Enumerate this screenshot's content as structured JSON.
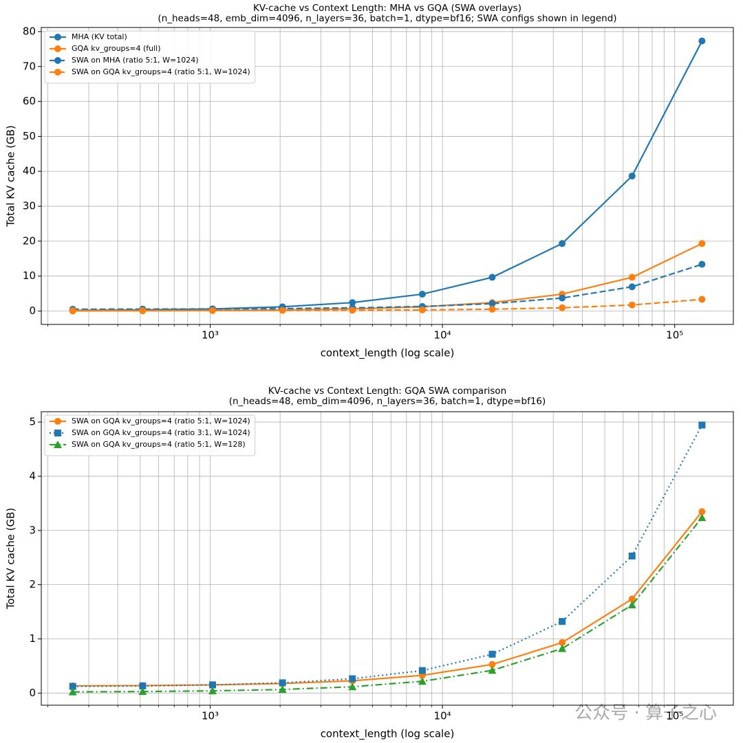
{
  "chart_data": [
    {
      "type": "line",
      "title": "KV-cache vs Context Length: MHA vs GQA (SWA overlays)",
      "subtitle": "(n_heads=48, emb_dim=4096, n_layers=36, batch=1, dtype=bf16; SWA configs shown in legend)",
      "xlabel": "context_length (log scale)",
      "ylabel": "Total KV cache (GB)",
      "xscale": "log",
      "grid": true,
      "legend": "upper left",
      "x": [
        256,
        512,
        1024,
        2048,
        4096,
        8192,
        16384,
        32768,
        65536,
        131072
      ],
      "series": [
        {
          "name": "MHA (KV total)",
          "color": "#1f77b4",
          "linestyle": "solid",
          "marker": "circle",
          "values": [
            0.151,
            0.302,
            0.604,
            1.208,
            2.416,
            4.832,
            9.664,
            19.327,
            38.655,
            77.309
          ]
        },
        {
          "name": "GQA kv_groups=4 (full)",
          "color": "#ff7f0e",
          "linestyle": "solid",
          "marker": "circle",
          "values": [
            0.038,
            0.075,
            0.151,
            0.302,
            0.604,
            1.208,
            2.416,
            4.832,
            9.664,
            19.327
          ]
        },
        {
          "name": "SWA on MHA (ratio 5:1, W=1024)",
          "color": "#1f77b4",
          "linestyle": "dashed",
          "marker": "circle",
          "values": [
            0.528,
            0.554,
            0.604,
            0.705,
            0.906,
            1.308,
            2.114,
            3.724,
            6.945,
            13.388
          ]
        },
        {
          "name": "SWA on GQA kv_groups=4 (ratio 5:1, W=1024)",
          "color": "#ff7f0e",
          "linestyle": "dashed",
          "marker": "circle",
          "values": [
            0.132,
            0.138,
            0.151,
            0.176,
            0.226,
            0.327,
            0.528,
            0.931,
            1.736,
            3.347
          ]
        }
      ],
      "xlim": [
        187.4,
        178900
      ],
      "ylim": [
        -3.83,
        81.17
      ],
      "xticks": [
        {
          "value": 1000,
          "label": "10³"
        },
        {
          "value": 10000,
          "label": "10⁴"
        },
        {
          "value": 100000,
          "label": "10⁵"
        }
      ],
      "xticks_minor": [
        200,
        300,
        400,
        500,
        600,
        700,
        800,
        900,
        2000,
        3000,
        4000,
        5000,
        6000,
        7000,
        8000,
        9000,
        20000,
        30000,
        40000,
        50000,
        60000,
        70000,
        80000,
        90000
      ],
      "yticks": [
        0,
        10,
        20,
        30,
        40,
        50,
        60,
        70,
        80
      ]
    },
    {
      "type": "line",
      "title": "KV-cache vs Context Length: GQA SWA comparison",
      "subtitle": "(n_heads=48, emb_dim=4096, n_layers=36, batch=1, dtype=bf16)",
      "xlabel": "context_length (log scale)",
      "ylabel": "Total KV cache (GB)",
      "xscale": "log",
      "grid": true,
      "legend": "upper left",
      "x": [
        256,
        512,
        1024,
        2048,
        4096,
        8192,
        16384,
        32768,
        65536,
        131072
      ],
      "series": [
        {
          "name": "SWA on GQA kv_groups=4 (ratio 5:1, W=1024)",
          "color": "#ff7f0e",
          "linestyle": "solid",
          "marker": "circle",
          "values": [
            0.132,
            0.138,
            0.151,
            0.176,
            0.226,
            0.327,
            0.528,
            0.931,
            1.736,
            3.347
          ]
        },
        {
          "name": "SWA on GQA kv_groups=4 (ratio 3:1, W=1024)",
          "color": "#1f77b4",
          "linestyle": "dotted",
          "marker": "square",
          "values": [
            0.123,
            0.132,
            0.151,
            0.189,
            0.264,
            0.415,
            0.717,
            1.321,
            2.529,
            4.945
          ]
        },
        {
          "name": "SWA on GQA kv_groups=4 (ratio 5:1, W=128)",
          "color": "#2ca02c",
          "linestyle": "dashdot",
          "marker": "triangle",
          "values": [
            0.022,
            0.028,
            0.041,
            0.066,
            0.116,
            0.217,
            0.419,
            0.821,
            1.626,
            3.237
          ]
        }
      ],
      "xlim": [
        187.4,
        178900
      ],
      "ylim": [
        -0.224,
        5.191
      ],
      "xticks": [
        {
          "value": 1000,
          "label": "10³"
        },
        {
          "value": 10000,
          "label": "10⁴"
        },
        {
          "value": 100000,
          "label": "10⁵"
        }
      ],
      "xticks_minor": [
        200,
        300,
        400,
        500,
        600,
        700,
        800,
        900,
        2000,
        3000,
        4000,
        5000,
        6000,
        7000,
        8000,
        9000,
        20000,
        30000,
        40000,
        50000,
        60000,
        70000,
        80000,
        90000
      ],
      "yticks": [
        0,
        1,
        2,
        3,
        4,
        5
      ]
    }
  ],
  "watermark": "公众号 · 算子之心"
}
